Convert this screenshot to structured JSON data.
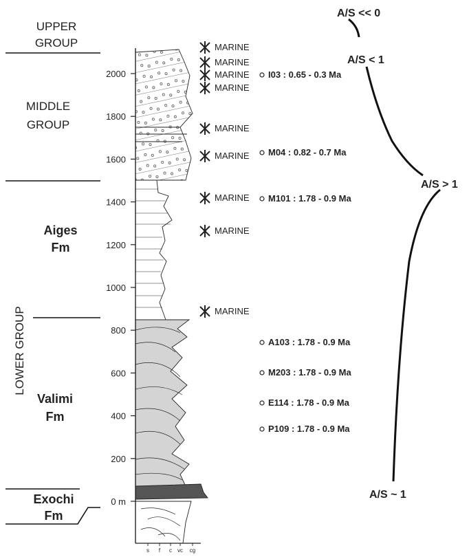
{
  "units": {
    "upper_group": [
      "UPPER",
      "GROUP"
    ],
    "middle_group": [
      "MIDDLE",
      "GROUP"
    ],
    "lower_group": "LOWER GROUP",
    "aiges": [
      "Aiges",
      "Fm"
    ],
    "valimi": [
      "Valimi",
      "Fm"
    ],
    "exochi": [
      "Exochi",
      "Fm"
    ]
  },
  "axis": {
    "ticks": [
      {
        "value": 0,
        "label": "0 m"
      },
      200,
      400,
      600,
      800,
      1000,
      1200,
      1400,
      1600,
      1800,
      2000
    ],
    "grain_sizes": [
      "s",
      "f",
      "c",
      "vc",
      "cg"
    ]
  },
  "marine": [
    "MARINE",
    "MARINE",
    "MARINE",
    "MARINE",
    "MARINE",
    "MARINE",
    "MARINE",
    "MARINE",
    "MARINE"
  ],
  "samples": [
    "I03 : 0.65 - 0.3 Ma",
    "M04 : 0.82 - 0.7 Ma",
    "M101 : 1.78 - 0.9 Ma",
    "A103 : 1.78 - 0.9 Ma",
    "M203 : 1.78 - 0.9 Ma",
    "E114 : 1.78 - 0.9 Ma",
    "P109 : 1.78 - 0.9 Ma"
  ],
  "accommodation": [
    "A/S << 0",
    "A/S < 1",
    "A/S > 1",
    "A/S ~ 1"
  ]
}
